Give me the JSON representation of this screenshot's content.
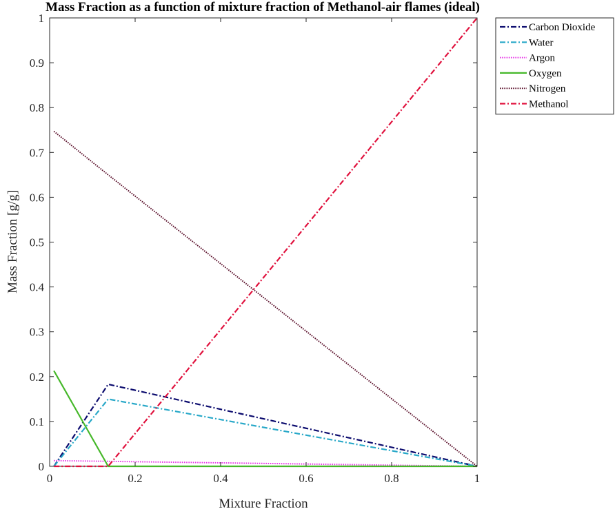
{
  "chart_data": {
    "type": "line",
    "title": "Mass Fraction as a function of mixture fraction of Methanol-air flames (ideal)",
    "xlabel": "Mixture Fraction",
    "ylabel": "Mass Fraction [g/g]",
    "xlim": [
      0,
      1
    ],
    "ylim": [
      0,
      1
    ],
    "xticks": [
      "0",
      "0.2",
      "0.4",
      "0.6",
      "0.8",
      "1"
    ],
    "yticks": [
      "0",
      "0.1",
      "0.2",
      "0.3",
      "0.4",
      "0.5",
      "0.6",
      "0.7",
      "0.8",
      "0.9",
      "1"
    ],
    "grid": false,
    "legend_position": "outside-top-right",
    "series": [
      {
        "name": "Carbon Dioxide",
        "color": "#0b0b6e",
        "dash": "dashdot",
        "x": [
          0.01,
          0.137,
          1
        ],
        "y": [
          0,
          0.183,
          0
        ]
      },
      {
        "name": "Water",
        "color": "#28a8c8",
        "dash": "dashdot",
        "x": [
          0.01,
          0.137,
          1
        ],
        "y": [
          0,
          0.15,
          0
        ]
      },
      {
        "name": "Argon",
        "color": "#e636e6",
        "dash": "dotted",
        "x": [
          0.01,
          0.137,
          1
        ],
        "y": [
          0.0126,
          0.011,
          0
        ]
      },
      {
        "name": "Oxygen",
        "color": "#46b82a",
        "dash": "solid",
        "x": [
          0.01,
          0.137,
          1
        ],
        "y": [
          0.213,
          0,
          0
        ]
      },
      {
        "name": "Nitrogen",
        "color": "#5a0f2a",
        "dash": "dotted",
        "x": [
          0.01,
          0.137,
          1
        ],
        "y": [
          0.747,
          0.65,
          0
        ]
      },
      {
        "name": "Methanol",
        "color": "#e0103c",
        "dash": "dashdot",
        "x": [
          0.01,
          0.137,
          1
        ],
        "y": [
          0,
          0,
          1
        ]
      }
    ]
  }
}
